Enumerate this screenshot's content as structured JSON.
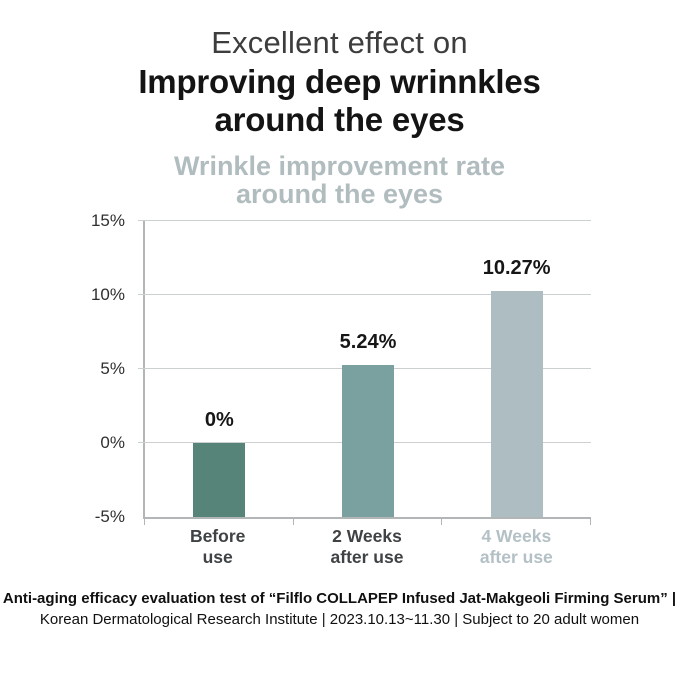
{
  "header": {
    "title_line1": "Excellent effect on",
    "title_line2": "Improving deep wrinnkles",
    "title_line3": "around the eyes"
  },
  "chart_data": {
    "type": "bar",
    "title_line1": "Wrinkle improvement rate",
    "title_line2": "around the eyes",
    "categories": [
      [
        "Before",
        "use"
      ],
      [
        "2 Weeks",
        "after use"
      ],
      [
        "4 Weeks",
        "after use"
      ]
    ],
    "values": [
      0,
      5.24,
      10.27
    ],
    "value_labels": [
      "0%",
      "5.24%",
      "10.27%"
    ],
    "bar_colors": [
      "#578478",
      "#7BA0A0",
      "#AEBDC2"
    ],
    "category_label_colors": [
      "#3F4345",
      "#3F4345",
      "#B3C0C5"
    ],
    "yticks": [
      15,
      10,
      5,
      0,
      -5
    ],
    "ytick_labels": [
      "15%",
      "10%",
      "5%",
      "0%",
      "-5%"
    ],
    "ylim": [
      -5,
      15
    ],
    "grid": true,
    "legend": false,
    "xlabel": "",
    "ylabel": ""
  },
  "footer": {
    "line1": "Anti-aging efficacy evaluation test of “Filflo COLLAPEP Infused Jat-Makgeoli Firming Serum” |",
    "line2": "Korean Dermatological Research Institute | 2023.10.13~11.30 | Subject to 20 adult women"
  }
}
